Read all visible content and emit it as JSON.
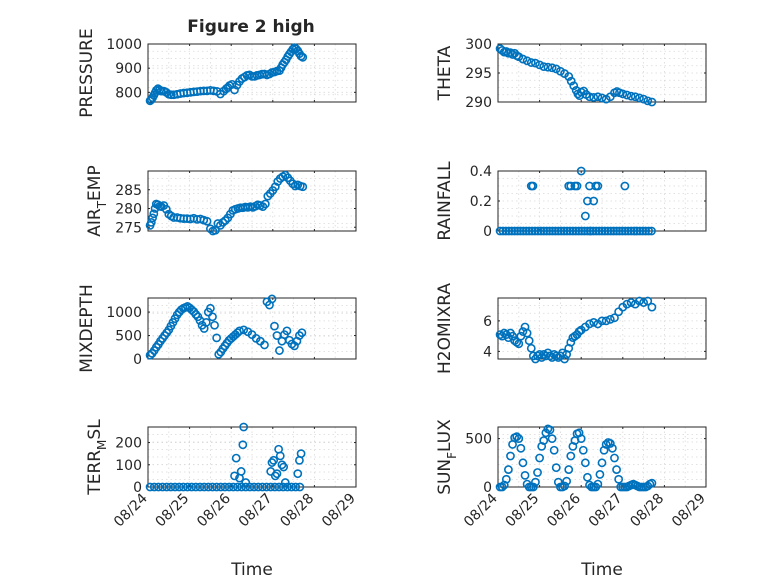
{
  "figure_title": "Figure 2 high",
  "colors": {
    "marker": "#0072BD",
    "axis": "#262626",
    "grid": "#d9d9d9"
  },
  "chart_data": [
    {
      "id": "pressure",
      "type": "scatter",
      "title": "Figure 2 high",
      "ylabel": "PRESSURE",
      "xlabel": "",
      "ylim": [
        760,
        1000
      ],
      "yticks": [
        800,
        900,
        1000
      ],
      "ytick_labels": [
        "800",
        "900",
        "1000"
      ],
      "xlim": [
        0,
        5
      ],
      "xticks": [
        0,
        1,
        2,
        3,
        4,
        5
      ],
      "xtick_labels": [],
      "grid": true,
      "marker": "circle",
      "x": [
        0.05,
        0.08,
        0.11,
        0.14,
        0.17,
        0.2,
        0.24,
        0.28,
        0.32,
        0.38,
        0.44,
        0.5,
        0.56,
        0.62,
        0.7,
        0.78,
        0.86,
        0.94,
        1.02,
        1.1,
        1.18,
        1.26,
        1.34,
        1.42,
        1.5,
        1.58,
        1.66,
        1.74,
        1.82,
        1.88,
        1.92,
        1.96,
        2.02,
        2.08,
        2.14,
        2.2,
        2.26,
        2.32,
        2.38,
        2.44,
        2.5,
        2.56,
        2.62,
        2.68,
        2.74,
        2.8,
        2.86,
        2.92,
        2.98,
        3.04,
        3.1,
        3.16,
        3.2,
        3.24,
        3.28,
        3.32,
        3.36,
        3.4,
        3.44,
        3.48,
        3.52,
        3.56,
        3.6,
        3.64,
        3.68,
        3.72
      ],
      "y": [
        765,
        770,
        778,
        788,
        798,
        808,
        815,
        810,
        805,
        805,
        800,
        792,
        790,
        790,
        792,
        795,
        797,
        798,
        800,
        802,
        803,
        805,
        806,
        806,
        808,
        806,
        804,
        793,
        805,
        815,
        820,
        828,
        833,
        810,
        830,
        845,
        857,
        863,
        870,
        872,
        866,
        866,
        870,
        872,
        875,
        876,
        872,
        876,
        882,
        884,
        888,
        890,
        902,
        915,
        925,
        935,
        948,
        958,
        968,
        978,
        985,
        980,
        972,
        960,
        950,
        945
      ]
    },
    {
      "id": "theta",
      "type": "scatter",
      "ylabel": "THETA",
      "xlabel": "",
      "ylim": [
        290,
        300
      ],
      "yticks": [
        290,
        295,
        300
      ],
      "ytick_labels": [
        "290",
        "295",
        "300"
      ],
      "xlim": [
        0,
        5
      ],
      "xticks": [
        0,
        1,
        2,
        3,
        4,
        5
      ],
      "xtick_labels": [],
      "grid": true,
      "marker": "circle",
      "x": [
        0.05,
        0.1,
        0.15,
        0.2,
        0.25,
        0.3,
        0.35,
        0.4,
        0.45,
        0.5,
        0.6,
        0.7,
        0.8,
        0.9,
        1.0,
        1.1,
        1.2,
        1.3,
        1.4,
        1.5,
        1.6,
        1.7,
        1.76,
        1.82,
        1.88,
        1.92,
        1.96,
        2.0,
        2.06,
        2.12,
        2.2,
        2.3,
        2.4,
        2.5,
        2.6,
        2.7,
        2.8,
        2.86,
        2.92,
        3.0,
        3.1,
        3.2,
        3.3,
        3.4,
        3.5,
        3.6,
        3.7
      ],
      "y": [
        299.2,
        298.9,
        298.6,
        298.7,
        298.4,
        298.5,
        298.2,
        298.4,
        298.0,
        297.8,
        297.4,
        297.1,
        296.8,
        296.7,
        296.4,
        296.1,
        296.0,
        295.9,
        295.7,
        295.3,
        294.9,
        294.4,
        293.6,
        292.8,
        292.0,
        291.4,
        291.1,
        291.7,
        291.9,
        291.3,
        290.9,
        290.8,
        290.9,
        290.7,
        290.5,
        290.9,
        291.6,
        291.8,
        291.6,
        291.4,
        291.2,
        291.0,
        290.9,
        290.7,
        290.5,
        290.2,
        290.0
      ]
    },
    {
      "id": "air_temp",
      "type": "scatter",
      "ylabel": "AIR_TEMP",
      "ylabel_main_before": "AIR",
      "ylabel_sub": "T",
      "ylabel_main_after": "EMP",
      "xlabel": "",
      "ylim": [
        274,
        290
      ],
      "yticks": [
        275,
        280,
        285
      ],
      "ytick_labels": [
        "275",
        "280",
        "285"
      ],
      "xlim": [
        0,
        5
      ],
      "xticks": [
        0,
        1,
        2,
        3,
        4,
        5
      ],
      "xtick_labels": [],
      "grid": true,
      "marker": "circle",
      "x": [
        0.05,
        0.08,
        0.11,
        0.14,
        0.17,
        0.2,
        0.24,
        0.28,
        0.32,
        0.38,
        0.44,
        0.5,
        0.56,
        0.62,
        0.7,
        0.78,
        0.86,
        0.94,
        1.02,
        1.1,
        1.18,
        1.26,
        1.34,
        1.42,
        1.5,
        1.56,
        1.62,
        1.68,
        1.74,
        1.8,
        1.86,
        1.92,
        1.98,
        2.04,
        2.1,
        2.16,
        2.22,
        2.28,
        2.34,
        2.4,
        2.46,
        2.52,
        2.58,
        2.64,
        2.7,
        2.76,
        2.82,
        2.88,
        2.94,
        3.0,
        3.06,
        3.12,
        3.18,
        3.24,
        3.3,
        3.36,
        3.42,
        3.48,
        3.54,
        3.6,
        3.66,
        3.72
      ],
      "y": [
        275.5,
        276.3,
        277.5,
        278.6,
        280.0,
        281.2,
        281.0,
        280.6,
        280.5,
        280.8,
        279.8,
        278.5,
        278.0,
        277.6,
        277.6,
        277.4,
        277.3,
        277.3,
        277.2,
        277.4,
        277.1,
        277.2,
        276.9,
        276.6,
        274.6,
        274.0,
        274.2,
        276.0,
        275.5,
        276.3,
        276.8,
        277.5,
        278.5,
        279.5,
        279.8,
        280.0,
        280.2,
        280.2,
        280.4,
        280.3,
        280.5,
        280.3,
        280.6,
        281.0,
        280.8,
        280.5,
        281.2,
        283.3,
        284.0,
        284.8,
        285.8,
        287.2,
        288.0,
        288.5,
        288.9,
        288.2,
        287.4,
        286.6,
        286.0,
        286.3,
        286.0,
        285.8
      ]
    },
    {
      "id": "rainfall",
      "type": "scatter",
      "ylabel": "RAINFALL",
      "xlabel": "",
      "ylim": [
        0,
        0.4
      ],
      "yticks": [
        0,
        0.2,
        0.4
      ],
      "ytick_labels": [
        "0",
        "0.2",
        "0.4"
      ],
      "xlim": [
        0,
        5
      ],
      "xticks": [
        0,
        1,
        2,
        3,
        4,
        5
      ],
      "xtick_labels": [],
      "grid": true,
      "marker": "circle",
      "x": [
        0.05,
        0.12,
        0.19,
        0.26,
        0.33,
        0.4,
        0.47,
        0.54,
        0.61,
        0.68,
        0.75,
        0.82,
        0.89,
        0.96,
        1.03,
        1.1,
        1.17,
        1.24,
        1.31,
        1.38,
        1.45,
        1.52,
        1.59,
        1.66,
        1.73,
        1.8,
        1.87,
        1.94,
        2.01,
        2.08,
        2.15,
        2.22,
        2.29,
        2.36,
        2.43,
        2.5,
        2.57,
        2.64,
        2.71,
        2.78,
        2.85,
        2.92,
        2.99,
        3.06,
        3.13,
        3.2,
        3.27,
        3.34,
        3.41,
        3.48,
        3.55,
        3.62,
        3.69,
        0.8,
        0.84,
        1.7,
        1.75,
        1.85,
        1.9,
        2.2,
        2.35,
        2.4,
        3.05,
        2.0,
        2.15,
        2.3,
        2.1,
        2.22
      ],
      "y": [
        0,
        0,
        0,
        0,
        0,
        0,
        0,
        0,
        0,
        0,
        0,
        0,
        0,
        0,
        0,
        0,
        0,
        0,
        0,
        0,
        0,
        0,
        0,
        0,
        0,
        0,
        0,
        0,
        0,
        0,
        0,
        0,
        0,
        0,
        0,
        0,
        0,
        0,
        0,
        0,
        0,
        0,
        0,
        0,
        0,
        0,
        0,
        0,
        0,
        0,
        0,
        0,
        0,
        0.3,
        0.3,
        0.3,
        0.3,
        0.3,
        0.3,
        0.3,
        0.3,
        0.3,
        0.3,
        0.4,
        0.2,
        0.2,
        0.1,
        0.0
      ]
    },
    {
      "id": "mixdepth",
      "type": "scatter",
      "ylabel": "MIXDEPTH",
      "xlabel": "",
      "ylim": [
        0,
        1300
      ],
      "yticks": [
        0,
        500,
        1000
      ],
      "ytick_labels": [
        "0",
        "500",
        "1000"
      ],
      "xlim": [
        0,
        5
      ],
      "xticks": [
        0,
        1,
        2,
        3,
        4,
        5
      ],
      "xtick_labels": [],
      "grid": true,
      "marker": "circle",
      "x": [
        0.05,
        0.1,
        0.15,
        0.2,
        0.25,
        0.3,
        0.35,
        0.4,
        0.45,
        0.5,
        0.55,
        0.6,
        0.65,
        0.7,
        0.75,
        0.8,
        0.85,
        0.9,
        0.95,
        1.0,
        1.05,
        1.1,
        1.15,
        1.2,
        1.25,
        1.3,
        1.35,
        1.4,
        1.45,
        1.5,
        1.55,
        1.6,
        1.65,
        1.7,
        1.75,
        1.8,
        1.85,
        1.9,
        1.95,
        2.0,
        2.05,
        2.1,
        2.15,
        2.2,
        2.3,
        2.4,
        2.5,
        2.6,
        2.7,
        2.8,
        2.86,
        2.92,
        2.98,
        3.04,
        3.1,
        3.16,
        3.22,
        3.28,
        3.34,
        3.4,
        3.46,
        3.52,
        3.58,
        3.64,
        3.7
      ],
      "y": [
        80,
        120,
        180,
        250,
        310,
        380,
        440,
        500,
        560,
        620,
        700,
        780,
        860,
        940,
        1000,
        1050,
        1080,
        1100,
        1120,
        1090,
        1050,
        1010,
        950,
        900,
        820,
        720,
        650,
        780,
        1000,
        1080,
        900,
        720,
        450,
        100,
        150,
        220,
        280,
        340,
        400,
        440,
        480,
        520,
        560,
        600,
        620,
        580,
        520,
        440,
        380,
        300,
        1220,
        1150,
        1280,
        700,
        500,
        180,
        380,
        520,
        600,
        400,
        320,
        280,
        380,
        500,
        560
      ]
    },
    {
      "id": "h2omixra",
      "type": "scatter",
      "ylabel": "H2OMIXRA",
      "xlabel": "",
      "ylim": [
        3.5,
        7.5
      ],
      "yticks": [
        4,
        6
      ],
      "ytick_labels": [
        "4",
        "6"
      ],
      "xlim": [
        0,
        5
      ],
      "xticks": [
        0,
        1,
        2,
        3,
        4,
        5
      ],
      "xtick_labels": [],
      "grid": true,
      "marker": "circle",
      "x": [
        0.05,
        0.1,
        0.15,
        0.2,
        0.25,
        0.3,
        0.35,
        0.4,
        0.45,
        0.5,
        0.55,
        0.6,
        0.65,
        0.7,
        0.75,
        0.8,
        0.85,
        0.9,
        0.95,
        1.0,
        1.05,
        1.1,
        1.15,
        1.2,
        1.25,
        1.3,
        1.35,
        1.4,
        1.45,
        1.5,
        1.55,
        1.6,
        1.65,
        1.7,
        1.75,
        1.8,
        1.85,
        1.9,
        1.95,
        2.0,
        2.1,
        2.2,
        2.3,
        2.4,
        2.5,
        2.6,
        2.7,
        2.8,
        2.9,
        3.0,
        3.1,
        3.2,
        3.3,
        3.4,
        3.5,
        3.6,
        3.7
      ],
      "y": [
        5.1,
        5.0,
        5.2,
        5.1,
        4.9,
        5.2,
        5.0,
        4.7,
        4.6,
        4.5,
        5.0,
        5.3,
        5.6,
        5.2,
        4.7,
        4.2,
        3.7,
        3.5,
        3.7,
        3.8,
        3.6,
        3.8,
        3.7,
        3.9,
        3.7,
        3.6,
        3.8,
        3.7,
        3.6,
        3.7,
        3.9,
        3.5,
        3.8,
        4.2,
        4.6,
        4.9,
        5.0,
        5.1,
        5.3,
        5.4,
        5.6,
        5.8,
        5.9,
        5.8,
        6.0,
        6.0,
        6.1,
        6.2,
        6.6,
        6.9,
        7.1,
        7.2,
        7.1,
        7.3,
        7.2,
        7.3,
        6.9
      ]
    },
    {
      "id": "terr_msl",
      "type": "scatter",
      "ylabel": "TERR_MSL",
      "ylabel_main_before": "TERR",
      "ylabel_sub": "M",
      "ylabel_main_after": "SL",
      "xlabel": "Time",
      "ylim": [
        0,
        270
      ],
      "yticks": [
        0,
        100,
        200
      ],
      "ytick_labels": [
        "0",
        "100",
        "200"
      ],
      "xlim": [
        0,
        5
      ],
      "xticks": [
        0,
        1,
        2,
        3,
        4,
        5
      ],
      "xtick_labels": [
        "08/24",
        "08/25",
        "08/26",
        "08/27",
        "08/28",
        "08/29"
      ],
      "grid": true,
      "marker": "circle",
      "x": [
        0.05,
        0.15,
        0.25,
        0.35,
        0.45,
        0.55,
        0.65,
        0.75,
        0.85,
        0.95,
        1.05,
        1.15,
        1.25,
        1.35,
        1.45,
        1.55,
        1.65,
        1.75,
        1.85,
        1.95,
        2.05,
        2.15,
        2.25,
        2.35,
        2.45,
        2.55,
        2.65,
        2.75,
        2.85,
        2.95,
        3.05,
        3.15,
        3.25,
        3.35,
        3.45,
        3.55,
        3.65,
        2.08,
        2.12,
        2.2,
        2.24,
        2.28,
        2.3,
        2.35,
        2.95,
        2.98,
        3.02,
        3.06,
        3.1,
        3.14,
        3.18,
        3.22,
        3.26,
        3.3,
        3.6,
        3.64,
        3.68
      ],
      "y": [
        0,
        0,
        0,
        0,
        0,
        0,
        0,
        0,
        0,
        0,
        0,
        0,
        0,
        0,
        0,
        0,
        0,
        0,
        0,
        0,
        0,
        0,
        0,
        0,
        0,
        0,
        0,
        0,
        0,
        0,
        0,
        0,
        0,
        0,
        0,
        0,
        0,
        50,
        130,
        40,
        70,
        190,
        270,
        20,
        70,
        110,
        120,
        50,
        60,
        170,
        140,
        100,
        90,
        20,
        60,
        120,
        150
      ]
    },
    {
      "id": "sun_flux",
      "type": "scatter",
      "ylabel": "SUN_FLUX",
      "ylabel_main_before": "SUN",
      "ylabel_sub": "F",
      "ylabel_main_after": "LUX",
      "xlabel": "Time",
      "ylim": [
        0,
        620
      ],
      "yticks": [
        0,
        500
      ],
      "ytick_labels": [
        "0",
        "500"
      ],
      "xlim": [
        0,
        5
      ],
      "xticks": [
        0,
        1,
        2,
        3,
        4,
        5
      ],
      "xtick_labels": [
        "08/24",
        "08/25",
        "08/26",
        "08/27",
        "08/28",
        "08/29"
      ],
      "grid": true,
      "marker": "circle",
      "x": [
        0.05,
        0.1,
        0.15,
        0.2,
        0.25,
        0.3,
        0.35,
        0.4,
        0.45,
        0.5,
        0.55,
        0.6,
        0.65,
        0.7,
        0.75,
        0.8,
        0.85,
        0.9,
        0.95,
        1.0,
        1.05,
        1.1,
        1.15,
        1.2,
        1.25,
        1.3,
        1.35,
        1.4,
        1.45,
        1.5,
        1.55,
        1.6,
        1.65,
        1.7,
        1.75,
        1.8,
        1.85,
        1.9,
        1.95,
        2.0,
        2.05,
        2.1,
        2.15,
        2.2,
        2.25,
        2.3,
        2.35,
        2.4,
        2.45,
        2.5,
        2.55,
        2.6,
        2.65,
        2.7,
        2.75,
        2.8,
        2.85,
        2.9,
        2.95,
        3.0,
        3.05,
        3.1,
        3.15,
        3.2,
        3.25,
        3.3,
        3.35,
        3.4,
        3.45,
        3.5,
        3.55,
        3.6,
        3.65,
        3.7
      ],
      "y": [
        0,
        0,
        20,
        80,
        180,
        320,
        440,
        510,
        520,
        500,
        400,
        250,
        120,
        30,
        0,
        0,
        0,
        50,
        150,
        300,
        420,
        480,
        560,
        600,
        590,
        500,
        380,
        200,
        50,
        0,
        0,
        10,
        60,
        180,
        320,
        420,
        480,
        550,
        560,
        500,
        380,
        250,
        100,
        20,
        0,
        0,
        0,
        30,
        130,
        250,
        380,
        440,
        460,
        450,
        400,
        300,
        180,
        80,
        0,
        0,
        0,
        0,
        10,
        20,
        30,
        20,
        10,
        0,
        0,
        0,
        0,
        10,
        30,
        40
      ]
    }
  ]
}
